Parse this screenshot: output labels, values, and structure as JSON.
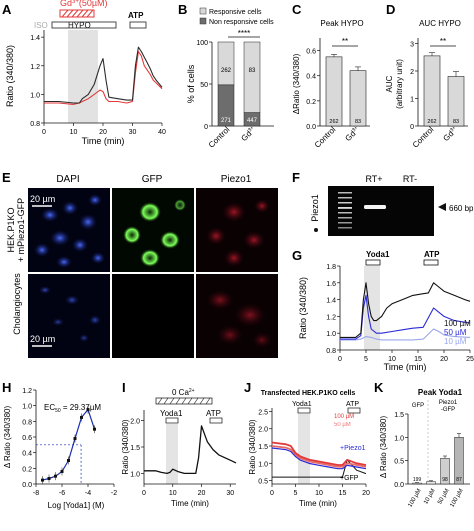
{
  "panels": {
    "A": {
      "letter": "A",
      "ylabel": "Ratio (340/380)",
      "xlabel": "Time (min)",
      "yticks": [
        "0.8",
        "1.0",
        "1.2",
        "1.4"
      ],
      "xticks": [
        "0",
        "10",
        "20",
        "30",
        "40"
      ],
      "gd_label": "Gd",
      "gd_sup": "3+",
      "gd_conc": "(50µM)",
      "iso_label": "ISO",
      "hypo_label": "HYPO",
      "atp_label": "ATP",
      "colors": {
        "control": "#2b2b2b",
        "gd": "#e23a3a"
      }
    },
    "B": {
      "letter": "B",
      "legend": [
        "Responsive cells",
        "Non responsive cells"
      ],
      "ylabel": "% of cells",
      "yticks": [
        "0",
        "50",
        "100"
      ],
      "stars": "****",
      "categories": [
        "Control",
        "Gd"
      ],
      "cat_sup": "3+",
      "counts": {
        "control_top": "262",
        "control_bottom": "271",
        "gd_top": "83",
        "gd_bottom": "447"
      }
    },
    "C": {
      "letter": "C",
      "title": "Peak HYPO",
      "ylabel": "ΔRatio (340/380)",
      "yticks": [
        "0.0",
        "0.2",
        "0.4",
        "0.6"
      ],
      "stars": "**",
      "categories": [
        "Control",
        "Gd"
      ],
      "cat_sup": "3+",
      "n": [
        "262",
        "83"
      ]
    },
    "D": {
      "letter": "D",
      "title": "AUC HYPO",
      "ylabel": "AUC",
      "ylabel2": "(arbitrary unit)",
      "yticks": [
        "0",
        "1",
        "2",
        "3"
      ],
      "stars": "**",
      "categories": [
        "Control",
        "Gd"
      ],
      "cat_sup": "3+",
      "n": [
        "262",
        "83"
      ]
    },
    "E": {
      "letter": "E",
      "col_labels": [
        "DAPI",
        "GFP",
        "Piezo1"
      ],
      "row1_label": "HEK.P1KO",
      "row1_label2": "+ mPiezo1-GFP",
      "row2_label": "Cholangiocytes",
      "scale1": "20 µm",
      "scale2": "20 µm"
    },
    "F": {
      "letter": "F",
      "ylabel": "Piezo1",
      "lanes": [
        "RT+",
        "RT-"
      ],
      "band": "660 bp"
    },
    "G": {
      "letter": "G",
      "ylabel": "Ratio (340/380)",
      "xlabel": "Time (min)",
      "yticks": [
        "0.8",
        "1.0",
        "1.2",
        "1.4",
        "1.6",
        "1.8"
      ],
      "xticks": [
        "0",
        "5",
        "10",
        "15",
        "20",
        "25"
      ],
      "yoda_label": "Yoda1",
      "atp_label": "ATP",
      "legend": [
        "100 µM",
        "50 µM",
        "10 µM"
      ]
    },
    "H": {
      "letter": "H",
      "ylabel": "Δ Ratio (340/380)",
      "xlabel": "Log [Yoda1] (M)",
      "yticks": [
        "0.0",
        "0.2",
        "0.4",
        "0.6",
        "0.8",
        "1.0",
        "1.2"
      ],
      "xticks": [
        "-8",
        "-6",
        "-4",
        "-2"
      ],
      "ec50_text": "EC",
      "ec50_sub": "50",
      "ec50_value": " = 29.37µM"
    },
    "I": {
      "letter": "I",
      "ylabel": "Ratio (340/380)",
      "xlabel": "Time (min)",
      "yticks": [
        "1.0",
        "1.5",
        "2.0"
      ],
      "xticks": [
        "0",
        "10",
        "20",
        "30"
      ],
      "ca_label": "0 Ca",
      "ca_sup": "2+",
      "yoda_label": "Yoda1",
      "atp_label": "ATP"
    },
    "J": {
      "letter": "J",
      "title": "Transfected HEK.P1KO cells",
      "ylabel": "Ratio (340/380)",
      "xlabel": "Time (min)",
      "yticks": [
        "0.5",
        "1.0",
        "1.5",
        "2.0",
        "2.5"
      ],
      "xticks": [
        "0",
        "5",
        "10",
        "15",
        "20"
      ],
      "yoda_label": "Yoda1",
      "atp_label": "ATP",
      "legend": [
        "100 µM",
        "50 µM"
      ],
      "piezo_label": "+Piezo1",
      "gfp_label": "+GFP"
    },
    "K": {
      "letter": "K",
      "title": "Peak Yoda1",
      "ylabel": "Δ Ratio (340/380)",
      "yticks": [
        "0.0",
        "0.5",
        "1.0",
        "1.5"
      ],
      "group1": "GFP",
      "group2": "Piezo1",
      "group2b": "-GFP",
      "categories": [
        "100 µM",
        "10 µM",
        "50 µM",
        "100 µM"
      ],
      "n": [
        "199",
        "98",
        "87"
      ]
    }
  },
  "chart_data": [
    {
      "panel": "A",
      "type": "line",
      "xlim": [
        0,
        40
      ],
      "ylim": [
        0.8,
        1.45
      ],
      "series": [
        {
          "x": [
            0,
            5,
            10,
            12,
            13,
            15,
            17,
            19,
            20,
            21,
            22,
            25,
            28,
            30,
            31,
            32,
            33,
            34,
            35,
            36,
            37,
            38,
            40
          ],
          "y": [
            0.95,
            0.95,
            0.94,
            0.94,
            0.97,
            1.0,
            1.07,
            1.2,
            1.25,
            1.1,
            0.98,
            0.97,
            0.96,
            0.96,
            1.2,
            1.33,
            1.3,
            1.26,
            1.22,
            1.18,
            1.13,
            1.1,
            1.05
          ]
        },
        {
          "x": [
            0,
            5,
            10,
            12,
            13,
            15,
            17,
            19,
            20,
            21,
            22,
            25,
            28,
            30,
            31,
            32,
            33,
            34,
            35,
            36,
            37,
            38,
            40
          ],
          "y": [
            0.94,
            0.94,
            0.93,
            0.94,
            0.95,
            0.97,
            1.0,
            1.03,
            1.02,
            0.97,
            0.95,
            0.95,
            0.94,
            0.95,
            1.15,
            1.3,
            1.27,
            1.2,
            1.17,
            1.14,
            1.1,
            1.08,
            1.04
          ]
        }
      ]
    },
    {
      "panel": "B",
      "type": "bar",
      "categories": [
        "Control",
        "Gd3+"
      ],
      "series": [
        {
          "name": "Responsive cells",
          "values": [
            49,
            16
          ]
        },
        {
          "name": "Non responsive cells",
          "values": [
            51,
            84
          ]
        }
      ],
      "ylim": [
        0,
        100
      ]
    },
    {
      "panel": "C",
      "type": "bar",
      "title": "Peak HYPO",
      "categories": [
        "Control",
        "Gd3+"
      ],
      "values": [
        0.55,
        0.44
      ],
      "errors": [
        0.02,
        0.03
      ],
      "ylim": [
        0,
        0.7
      ]
    },
    {
      "panel": "D",
      "type": "bar",
      "title": "AUC HYPO",
      "categories": [
        "Control",
        "Gd3+"
      ],
      "values": [
        2.55,
        1.8
      ],
      "errors": [
        0.12,
        0.18
      ],
      "ylim": [
        0,
        3.2
      ]
    },
    {
      "panel": "G",
      "type": "line",
      "xlim": [
        0,
        25
      ],
      "ylim": [
        0.8,
        1.8
      ],
      "series": [
        {
          "name": "100 µM",
          "x": [
            0,
            3,
            4,
            4.5,
            5,
            5.5,
            6,
            6.5,
            7,
            8,
            9,
            10,
            12,
            14,
            16,
            17,
            18,
            19,
            20,
            22,
            24,
            25
          ],
          "y": [
            0.95,
            0.95,
            1.0,
            1.4,
            1.6,
            1.35,
            1.2,
            1.15,
            1.15,
            1.2,
            1.3,
            1.35,
            1.4,
            1.45,
            1.47,
            1.48,
            1.6,
            1.55,
            1.5,
            1.45,
            1.4,
            1.38
          ]
        },
        {
          "name": "50 µM",
          "x": [
            0,
            3,
            4,
            4.5,
            5,
            5.5,
            6,
            7,
            8,
            10,
            12,
            14,
            16,
            18,
            19,
            20,
            22,
            25
          ],
          "y": [
            0.93,
            0.93,
            0.97,
            1.3,
            1.45,
            1.2,
            1.05,
            1.0,
            1.0,
            1.02,
            1.04,
            1.06,
            1.07,
            1.3,
            1.25,
            1.2,
            1.15,
            1.12
          ]
        },
        {
          "name": "10 µM",
          "x": [
            0,
            3,
            4,
            5,
            6,
            7,
            8,
            10,
            12,
            14,
            16,
            18,
            19,
            20,
            22,
            25
          ],
          "y": [
            0.92,
            0.92,
            0.93,
            0.96,
            0.95,
            0.93,
            0.92,
            0.92,
            0.92,
            0.92,
            0.93,
            1.05,
            1.02,
            0.98,
            0.96,
            0.95
          ]
        }
      ]
    },
    {
      "panel": "H",
      "type": "line",
      "xlim": [
        -8,
        -2
      ],
      "ylim": [
        0,
        1.2
      ],
      "series": [
        {
          "x": [
            -7.5,
            -7,
            -6.5,
            -6,
            -5.5,
            -5,
            -4.5,
            -4,
            -3.5
          ],
          "y": [
            0.05,
            0.07,
            0.1,
            0.16,
            0.3,
            0.58,
            0.85,
            0.95,
            0.7
          ]
        }
      ]
    },
    {
      "panel": "I",
      "type": "line",
      "xlim": [
        0,
        32
      ],
      "ylim": [
        0.8,
        2.2
      ],
      "series": [
        {
          "x": [
            0,
            4,
            6,
            8,
            9,
            10,
            12,
            14,
            16,
            18,
            19,
            20,
            21,
            22,
            24,
            26,
            28,
            30,
            32
          ],
          "y": [
            1.05,
            1.05,
            1.02,
            1.0,
            1.02,
            1.08,
            1.03,
            1.0,
            1.0,
            1.0,
            1.3,
            1.9,
            1.75,
            1.6,
            1.45,
            1.35,
            1.3,
            1.25,
            1.2
          ]
        }
      ]
    },
    {
      "panel": "J",
      "type": "line",
      "xlim": [
        0,
        20
      ],
      "ylim": [
        0.4,
        2.6
      ],
      "series": [
        {
          "name": "100 µM",
          "x": [
            0,
            3,
            4,
            5,
            6,
            7,
            8,
            10,
            12,
            14,
            15,
            16,
            18,
            20
          ],
          "y": [
            1.6,
            1.55,
            1.5,
            1.3,
            1.2,
            1.15,
            1.1,
            1.05,
            1.0,
            0.95,
            0.95,
            1.1,
            1.0,
            0.95
          ]
        },
        {
          "name": "50 µM",
          "x": [
            0,
            3,
            4,
            5,
            6,
            7,
            8,
            10,
            12,
            14,
            15,
            16,
            18,
            20
          ],
          "y": [
            1.5,
            1.45,
            1.4,
            1.25,
            1.15,
            1.1,
            1.05,
            1.0,
            0.95,
            0.9,
            0.9,
            1.0,
            0.95,
            0.9
          ]
        },
        {
          "name": "+GFP",
          "x": [
            0,
            5,
            10,
            14,
            15,
            16,
            18,
            20
          ],
          "y": [
            0.6,
            0.6,
            0.6,
            0.6,
            0.6,
            1.1,
            0.8,
            0.7
          ]
        }
      ]
    },
    {
      "panel": "K",
      "type": "bar",
      "title": "Peak Yoda1",
      "categories": [
        "GFP 100 µM",
        "Piezo1-GFP 10 µM",
        "Piezo1-GFP 50 µM",
        "Piezo1-GFP 100 µM"
      ],
      "values": [
        0.02,
        0.05,
        0.55,
        1.0
      ],
      "errors": [
        0.01,
        0.02,
        0.05,
        0.08
      ],
      "ylim": [
        0,
        1.5
      ]
    }
  ]
}
